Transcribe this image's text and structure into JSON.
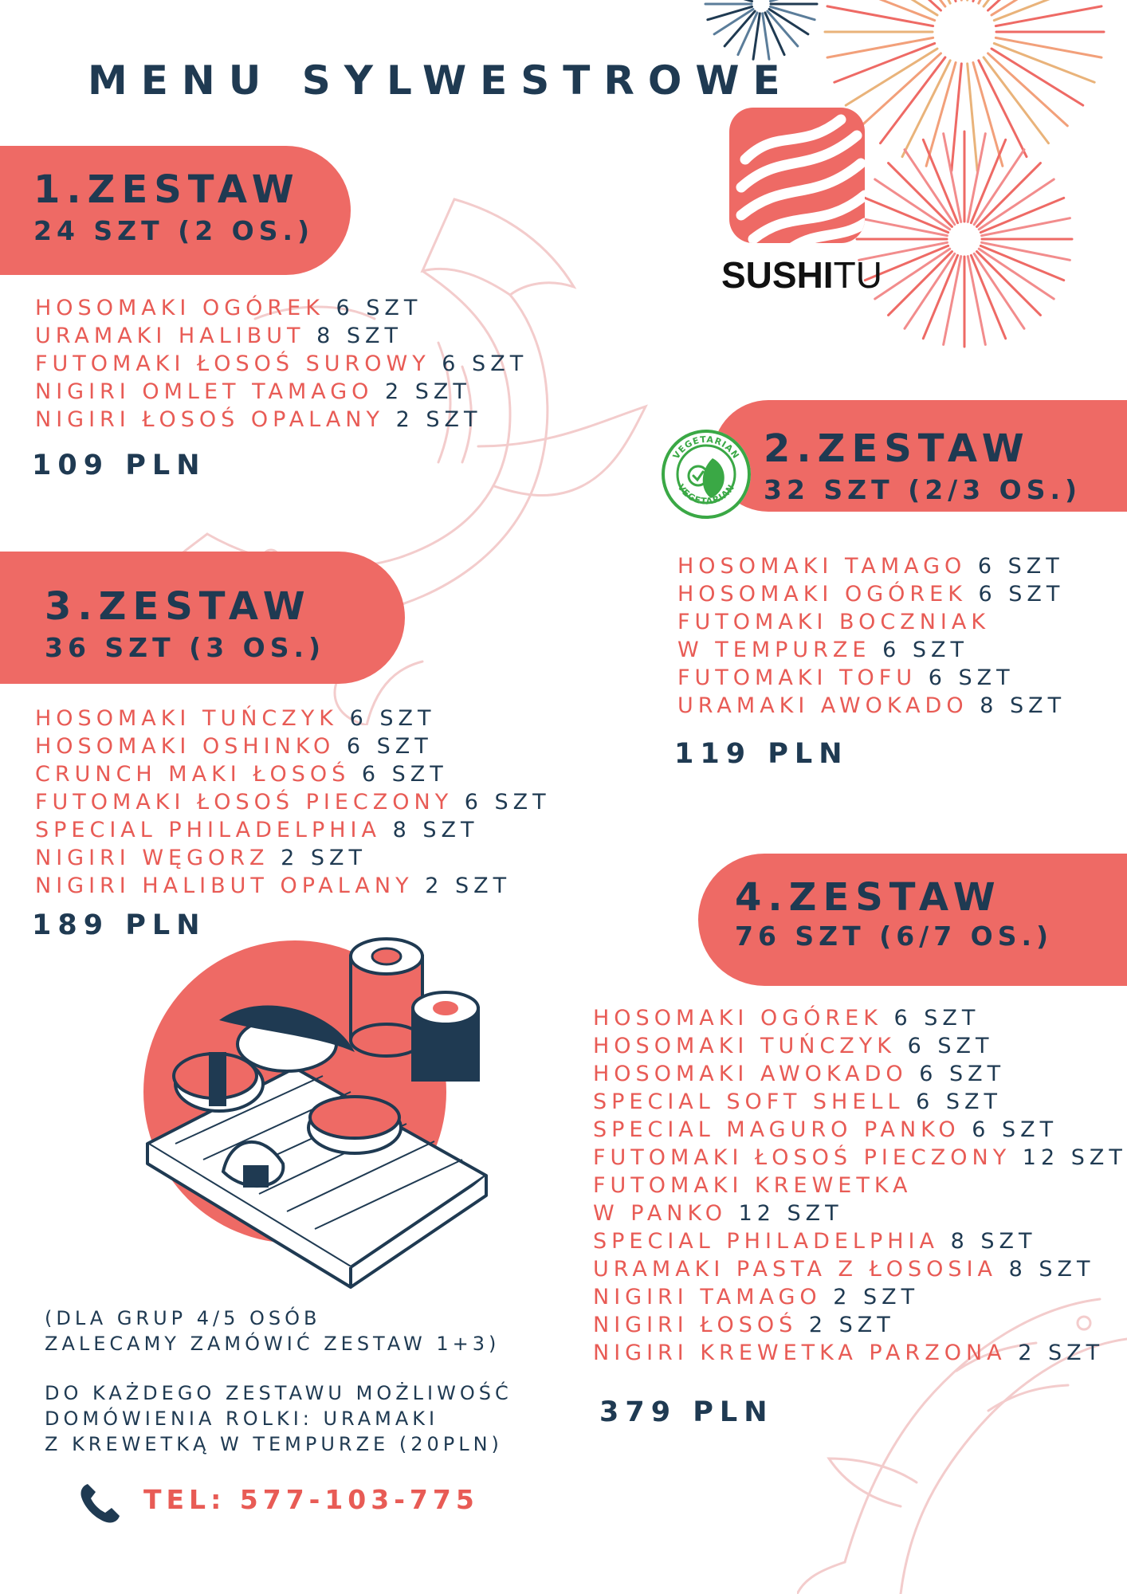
{
  "header": {
    "title": "MENU SYLWESTROWE"
  },
  "logo": {
    "brand_a": "SUSHI",
    "brand_b": "TU"
  },
  "badge": {
    "text": "VEGETARIAN"
  },
  "sets": [
    {
      "title": "1.ZESTAW",
      "subtitle": "24 SZT (2 OS.)",
      "items": [
        {
          "name": "HOSOMAKI OGÓREK",
          "qty": "6 SZT"
        },
        {
          "name": "URAMAKI HALIBUT",
          "qty": "8 SZT"
        },
        {
          "name": "FUTOMAKI ŁOSOŚ SUROWY",
          "qty": "6 SZT"
        },
        {
          "name": "NIGIRI OMLET TAMAGO",
          "qty": "2 SZT"
        },
        {
          "name": "NIGIRI ŁOSOŚ OPALANY",
          "qty": "2 SZT"
        }
      ],
      "price": "109 PLN"
    },
    {
      "title": "2.ZESTAW",
      "subtitle": "32 SZT (2/3 OS.)",
      "items": [
        {
          "name": "HOSOMAKI TAMAGO",
          "qty": "6 SZT"
        },
        {
          "name": "HOSOMAKI OGÓREK",
          "qty": "6 SZT"
        },
        {
          "name": "FUTOMAKI BOCZNIAK",
          "qty": ""
        },
        {
          "name": "W TEMPURZE",
          "qty": "6 SZT"
        },
        {
          "name": "FUTOMAKI TOFU",
          "qty": "6 SZT"
        },
        {
          "name": "URAMAKI AWOKADO",
          "qty": "8 SZT"
        }
      ],
      "price": "119 PLN"
    },
    {
      "title": "3.ZESTAW",
      "subtitle": "36 SZT (3 OS.)",
      "items": [
        {
          "name": "HOSOMAKI TUŃCZYK",
          "qty": "6 SZT"
        },
        {
          "name": "HOSOMAKI OSHINKO",
          "qty": "6 SZT"
        },
        {
          "name": "CRUNCH MAKI ŁOSOŚ",
          "qty": "6 SZT"
        },
        {
          "name": "FUTOMAKI ŁOSOŚ PIECZONY",
          "qty": "6 SZT"
        },
        {
          "name": "SPECIAL PHILADELPHIA",
          "qty": "8 SZT"
        },
        {
          "name": "NIGIRI WĘGORZ",
          "qty": "2 SZT"
        },
        {
          "name": "NIGIRI HALIBUT OPALANY",
          "qty": "2 SZT"
        }
      ],
      "price": "189 PLN"
    },
    {
      "title": "4.ZESTAW",
      "subtitle": "76 SZT (6/7 OS.)",
      "items": [
        {
          "name": "HOSOMAKI OGÓREK",
          "qty": "6 SZT"
        },
        {
          "name": "HOSOMAKI TUŃCZYK",
          "qty": "6 SZT"
        },
        {
          "name": "HOSOMAKI AWOKADO",
          "qty": "6 SZT"
        },
        {
          "name": "SPECIAL SOFT SHELL",
          "qty": "6 SZT"
        },
        {
          "name": "SPECIAL MAGURO PANKO",
          "qty": "6 SZT"
        },
        {
          "name": "FUTOMAKI ŁOSOŚ PIECZONY",
          "qty": "12 SZT"
        },
        {
          "name": "FUTOMAKI KREWETKA",
          "qty": ""
        },
        {
          "name": "W PANKO",
          "qty": "12 SZT"
        },
        {
          "name": "SPECIAL PHILADELPHIA",
          "qty": "8 SZT"
        },
        {
          "name": "URAMAKI PASTA Z ŁOSOSIA",
          "qty": "8 SZT"
        },
        {
          "name": "NIGIRI TAMAGO",
          "qty": "2 SZT"
        },
        {
          "name": "NIGIRI ŁOSOŚ",
          "qty": "2 SZT"
        },
        {
          "name": "NIGIRI KREWETKA PARZONA",
          "qty": "2 SZT"
        }
      ],
      "price": "379 PLN"
    }
  ],
  "notes": {
    "group_lines": [
      "(DLA GRUP 4/5 OSÓB",
      "ZALECAMY ZAMÓWIĆ ZESTAW 1+3)"
    ],
    "extra_lines": [
      "DO KAŻDEGO ZESTAWU MOŻLIWOŚĆ",
      "DOMÓWIENIA ROLKI: URAMAKI",
      "Z KREWETKĄ W TEMPURZE (20PLN)"
    ]
  },
  "contact": {
    "phone": "TEL: 577-103-775",
    "icon": "phone-icon"
  },
  "colors": {
    "coral": "#ee6a65",
    "navy": "#1f3a52",
    "green": "#3aa845",
    "fish": "#f3cccc"
  }
}
